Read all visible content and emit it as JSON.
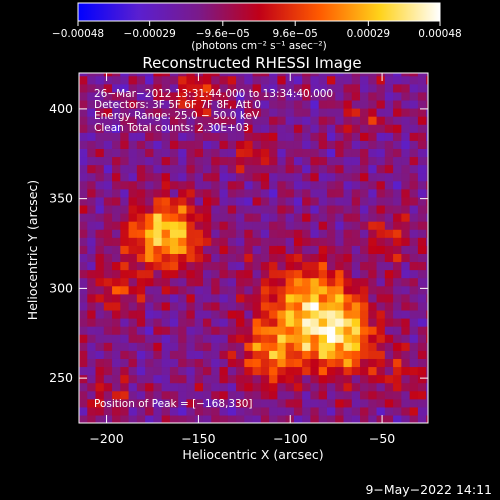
{
  "chart_data": {
    "type": "heatmap",
    "title": "Reconstructed RHESSI Image",
    "xlabel": "Heliocentric X (arcsec)",
    "ylabel": "Heliocentric Y (arcsec)",
    "xlim": [
      -215,
      -25
    ],
    "ylim": [
      225,
      420
    ],
    "x_ticks": [
      -200,
      -150,
      -100,
      -50
    ],
    "x_tick_labels": [
      "−200",
      "−150",
      "−100",
      "−50"
    ],
    "y_ticks": [
      250,
      300,
      350,
      400
    ],
    "y_tick_labels": [
      "250",
      "300",
      "350",
      "400"
    ],
    "colorbar": {
      "range": [
        -0.00048,
        0.00048
      ],
      "ticks": [
        -0.00048,
        -0.00029,
        -9.6e-05,
        9.6e-05,
        0.00029,
        0.00048
      ],
      "tick_labels": [
        "−0.00048",
        "−0.00029",
        "−9.6e−05",
        "9.6e−05",
        "0.00029",
        "0.00048"
      ],
      "unit_label": "(photons cm⁻² s⁻¹ asec⁻²)",
      "colors": [
        "#0000ff",
        "#5a1fd0",
        "#7a1a8a",
        "#c00018",
        "#ff5a00",
        "#ffd21a",
        "#ffffff"
      ]
    },
    "annotations": [
      "26−Mar−2012 13:31:44.000 to 13:34:40.000",
      "Detectors: 3F 5F 6F 7F 8F, Att 0",
      "Energy Range: 25.0 − 50.0 keV",
      "Clean     Total counts: 2.30E+03"
    ],
    "peak_label": "Position of Peak = [−168,330]",
    "peak": [
      -168,
      330
    ],
    "sources": [
      {
        "x": -168,
        "y": 330,
        "peak": 0.00048,
        "radius": 14
      },
      {
        "x": -90,
        "y": 290,
        "peak": 0.00042,
        "radius": 18
      },
      {
        "x": -72,
        "y": 272,
        "peak": 0.00038,
        "radius": 14
      },
      {
        "x": -112,
        "y": 262,
        "peak": 0.0003,
        "radius": 12
      },
      {
        "x": -150,
        "y": 410,
        "peak": 0.00022,
        "radius": 10
      },
      {
        "x": -195,
        "y": 300,
        "peak": 0.0002,
        "radius": 10
      },
      {
        "x": -120,
        "y": 375,
        "peak": 0.00016,
        "radius": 9
      },
      {
        "x": -45,
        "y": 330,
        "peak": 0.00018,
        "radius": 10
      },
      {
        "x": -40,
        "y": 250,
        "peak": 0.00015,
        "radius": 10
      },
      {
        "x": -200,
        "y": 240,
        "peak": 0.00012,
        "radius": 10
      },
      {
        "x": -60,
        "y": 395,
        "peak": 0.00012,
        "radius": 9
      }
    ]
  },
  "footer": {
    "timestamp": "9−May−2022 14:11"
  }
}
